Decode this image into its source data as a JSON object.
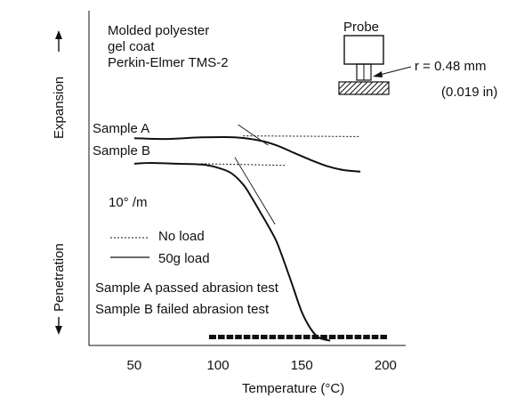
{
  "chart_data": {
    "type": "line",
    "title": "",
    "annotations": {
      "material": [
        "Molded polyester",
        "gel coat",
        "Perkin-Elmer TMS-2"
      ],
      "rate": "10° /m",
      "probe_label": "Probe",
      "probe_radius": "r = 0.48 mm",
      "probe_radius_in": "(0.019 in)",
      "result_a": "Sample A passed abrasion test",
      "result_b": "Sample B failed abrasion test"
    },
    "xlabel": "Temperature (°C)",
    "ylabel_top": "Expansion",
    "ylabel_bottom": "Penetration",
    "x_ticks": [
      50,
      100,
      150,
      200
    ],
    "xlim": [
      23,
      212
    ],
    "ylim": [
      -13,
      8
    ],
    "grid": false,
    "legend": {
      "placement": "middle-left",
      "entries": [
        {
          "label": "No load",
          "style": "dotted"
        },
        {
          "label": "50g load",
          "style": "solid"
        }
      ]
    },
    "series": [
      {
        "name": "Sample A",
        "style": "solid",
        "x": [
          50,
          70,
          90,
          110,
          125,
          135,
          145,
          155,
          165,
          175,
          185
        ],
        "y": [
          0,
          -0.05,
          0.05,
          0.05,
          -0.15,
          -0.45,
          -0.9,
          -1.35,
          -1.75,
          -2.0,
          -2.1
        ]
      },
      {
        "name": "Sample A",
        "style": "dotted",
        "x": [
          115,
          185
        ],
        "y": [
          0.15,
          0.1
        ]
      },
      {
        "name": "Sample B",
        "style": "solid",
        "x": [
          50,
          60,
          75,
          90,
          100,
          108,
          115,
          120,
          125,
          130,
          135,
          140,
          145,
          150,
          155,
          160,
          167
        ],
        "y": [
          -1.6,
          -1.55,
          -1.6,
          -1.65,
          -1.85,
          -2.2,
          -2.9,
          -3.7,
          -4.6,
          -5.5,
          -6.5,
          -7.9,
          -9.4,
          -10.9,
          -11.9,
          -12.5,
          -12.7
        ]
      },
      {
        "name": "Sample B",
        "style": "dotted",
        "x": [
          90,
          140
        ],
        "y": [
          -1.6,
          -1.7
        ]
      },
      {
        "name": "tangent",
        "style": "thin",
        "x": [
          110,
          134
        ],
        "y": [
          -1.2,
          -5.4
        ]
      },
      {
        "name": "tangent",
        "style": "thin",
        "x": [
          112,
          130
        ],
        "y": [
          0.85,
          -0.45
        ]
      }
    ]
  }
}
